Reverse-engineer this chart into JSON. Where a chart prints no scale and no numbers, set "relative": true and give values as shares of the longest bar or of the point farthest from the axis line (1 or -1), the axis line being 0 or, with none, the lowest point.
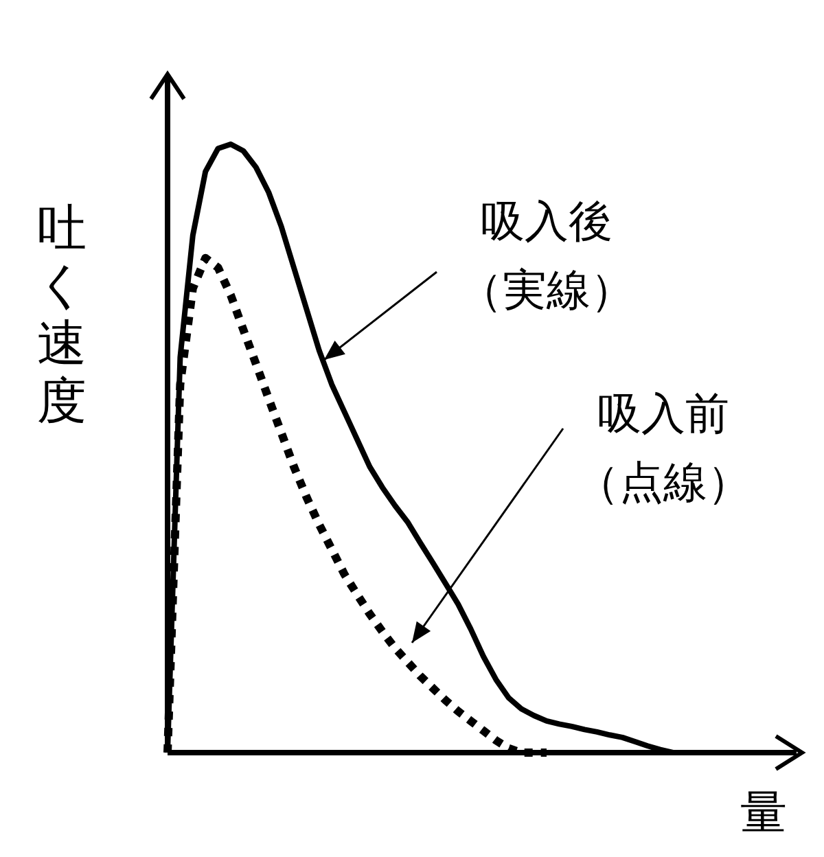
{
  "chart_data": {
    "type": "line",
    "relative": true,
    "xlabel": "量",
    "ylabel": "吐く速度",
    "annotations": [
      "吸入後",
      "（実線）",
      "吸入前",
      "（点線）"
    ],
    "categories": [
      null,
      null,
      null,
      null,
      null,
      null,
      null,
      null,
      null,
      null,
      null,
      null,
      null,
      null,
      null,
      null,
      null,
      null,
      null,
      null,
      null,
      null,
      null,
      null,
      null,
      null,
      null,
      null,
      null,
      null,
      null,
      null,
      null,
      null,
      null,
      null,
      null,
      null,
      null,
      null,
      null
    ],
    "series": [
      {
        "color": "#000000",
        "line_style": "solid",
        "values": [
          0,
          0.65,
          0.85,
          0.955,
          0.993,
          1.0,
          0.989,
          0.962,
          0.921,
          0.865,
          0.797,
          0.729,
          0.661,
          0.605,
          0.56,
          0.515,
          0.47,
          0.436,
          0.406,
          0.379,
          0.345,
          0.312,
          0.278,
          0.244,
          0.203,
          0.158,
          0.12,
          0.09,
          0.072,
          0.061,
          0.052,
          0.047,
          0.043,
          0.038,
          0.034,
          0.029,
          0.025,
          0.018,
          0.011,
          0.005,
          0
        ]
      },
      {
        "color": "#000000",
        "line_style": "dotted",
        "values": [
          0,
          0.605,
          0.763,
          0.813,
          0.797,
          0.752,
          0.695,
          0.639,
          0.582,
          0.526,
          0.47,
          0.42,
          0.375,
          0.334,
          0.293,
          0.26,
          0.228,
          0.199,
          0.172,
          0.149,
          0.126,
          0.106,
          0.086,
          0.068,
          0.052,
          0.036,
          0.02,
          0.007,
          0,
          0,
          0,
          null,
          null,
          null,
          null,
          null,
          null,
          null,
          null,
          null,
          null
        ]
      }
    ]
  }
}
